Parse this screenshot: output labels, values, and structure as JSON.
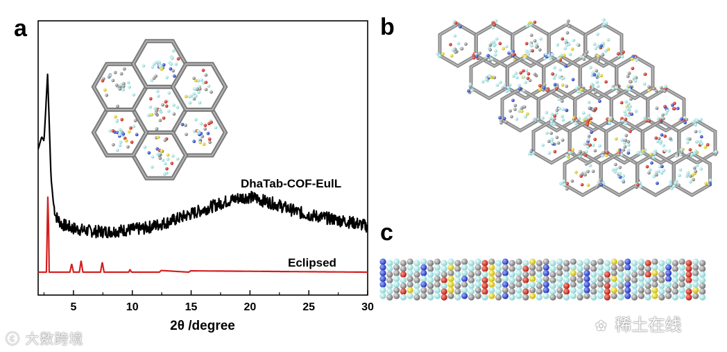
{
  "panels": {
    "a": "a",
    "b": "b",
    "c": "c"
  },
  "chart_data": {
    "type": "line",
    "xlabel": "2θ /degree",
    "ylabel": "",
    "xlim": [
      2,
      30
    ],
    "xticks": [
      5,
      10,
      15,
      20,
      25,
      30
    ],
    "y_ticks_shown": false,
    "series": [
      {
        "name": "DhaTab-COF-EulL",
        "color": "#000000",
        "x": [
          2.0,
          2.3,
          2.5,
          2.7,
          2.8,
          2.9,
          3.0,
          3.1,
          3.3,
          3.5,
          4,
          5,
          6,
          7,
          8,
          9,
          10,
          11,
          12,
          13,
          14,
          15,
          16,
          17,
          18,
          19,
          19.5,
          20,
          20.5,
          21,
          22,
          23,
          24,
          25,
          26,
          27,
          28,
          29,
          30
        ],
        "y": [
          0.6,
          0.66,
          0.64,
          0.85,
          0.96,
          0.8,
          0.62,
          0.46,
          0.34,
          0.28,
          0.24,
          0.22,
          0.21,
          0.205,
          0.205,
          0.21,
          0.215,
          0.22,
          0.235,
          0.25,
          0.27,
          0.29,
          0.31,
          0.33,
          0.35,
          0.365,
          0.37,
          0.37,
          0.365,
          0.355,
          0.34,
          0.32,
          0.3,
          0.285,
          0.275,
          0.265,
          0.255,
          0.245,
          0.23
        ]
      },
      {
        "name": "Eclipsed",
        "color": "#d41f1f",
        "x": [
          2.0,
          2.7,
          2.82,
          2.88,
          2.94,
          3.1,
          4.7,
          4.85,
          5.0,
          5.5,
          5.65,
          5.8,
          7.3,
          7.45,
          7.6,
          9.7,
          9.8,
          9.95,
          12.3,
          12.45,
          14.8,
          14.95,
          30
        ],
        "y": [
          0.0,
          0.0,
          0.45,
          0.3,
          0.0,
          0.0,
          0.0,
          0.05,
          0.0,
          0.0,
          0.07,
          0.0,
          0.0,
          0.06,
          0.0,
          0.0,
          0.015,
          0.0,
          0.0,
          0.01,
          0.0,
          0.008,
          0.0
        ]
      }
    ]
  },
  "watermarks": {
    "left": "大数跨境",
    "right": "稀土在线",
    "right_icon": "wechat-icon"
  }
}
